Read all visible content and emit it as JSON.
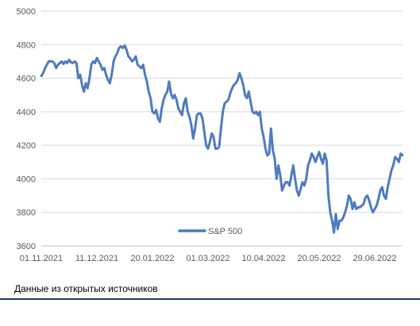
{
  "chart_data": {
    "type": "line",
    "title": "",
    "xlabel": "",
    "ylabel": "",
    "ylim": [
      3600,
      5000
    ],
    "yticks": [
      3600,
      3800,
      4000,
      4200,
      4400,
      4600,
      4800,
      5000
    ],
    "xtick_labels": [
      "01.11.2021",
      "11.12.2021",
      "20.01.2022",
      "01.03.2022",
      "10.04.2022",
      "20.05.2022",
      "29.06.2022"
    ],
    "grid": "horizontal",
    "legend_position": "bottom-center",
    "series": [
      {
        "name": "S&P 500",
        "color": "#4f7bbf",
        "values": [
          4613,
          4630,
          4660,
          4680,
          4700,
          4700,
          4700,
          4690,
          4660,
          4680,
          4690,
          4700,
          4685,
          4700,
          4690,
          4710,
          4695,
          4690,
          4700,
          4690,
          4600,
          4620,
          4560,
          4520,
          4570,
          4540,
          4600,
          4680,
          4700,
          4690,
          4720,
          4700,
          4680,
          4650,
          4660,
          4620,
          4590,
          4570,
          4620,
          4700,
          4730,
          4750,
          4780,
          4790,
          4780,
          4795,
          4770,
          4730,
          4720,
          4700,
          4710,
          4730,
          4680,
          4670,
          4660,
          4680,
          4620,
          4580,
          4520,
          4480,
          4400,
          4390,
          4410,
          4360,
          4340,
          4420,
          4470,
          4500,
          4520,
          4580,
          4510,
          4480,
          4500,
          4470,
          4420,
          4400,
          4380,
          4450,
          4480,
          4400,
          4370,
          4320,
          4240,
          4300,
          4380,
          4390,
          4390,
          4360,
          4280,
          4200,
          4180,
          4220,
          4270,
          4250,
          4180,
          4180,
          4190,
          4300,
          4400,
          4450,
          4460,
          4470,
          4510,
          4540,
          4560,
          4570,
          4590,
          4630,
          4600,
          4560,
          4500,
          4480,
          4520,
          4460,
          4400,
          4390,
          4400,
          4380,
          4400,
          4300,
          4250,
          4180,
          4140,
          4150,
          4300,
          4170,
          4120,
          4000,
          4080,
          4020,
          3930,
          3960,
          3980,
          3980,
          3960,
          4020,
          4080,
          4000,
          3930,
          3900,
          3940,
          3980,
          3960,
          4000,
          4080,
          4110,
          4150,
          4130,
          4100,
          4130,
          4160,
          4120,
          4090,
          4150,
          4110,
          3900,
          3800,
          3750,
          3680,
          3790,
          3700,
          3750,
          3750,
          3770,
          3800,
          3840,
          3900,
          3880,
          3820,
          3860,
          3820,
          3830,
          3830,
          3840,
          3850,
          3890,
          3900,
          3870,
          3830,
          3800,
          3820,
          3840,
          3880,
          3930,
          3950,
          3900,
          3880,
          3950,
          4000,
          4050,
          4080,
          4130,
          4120,
          4100,
          4150,
          4140
        ]
      }
    ]
  },
  "footer": {
    "source": "Данные из открытых источников"
  }
}
